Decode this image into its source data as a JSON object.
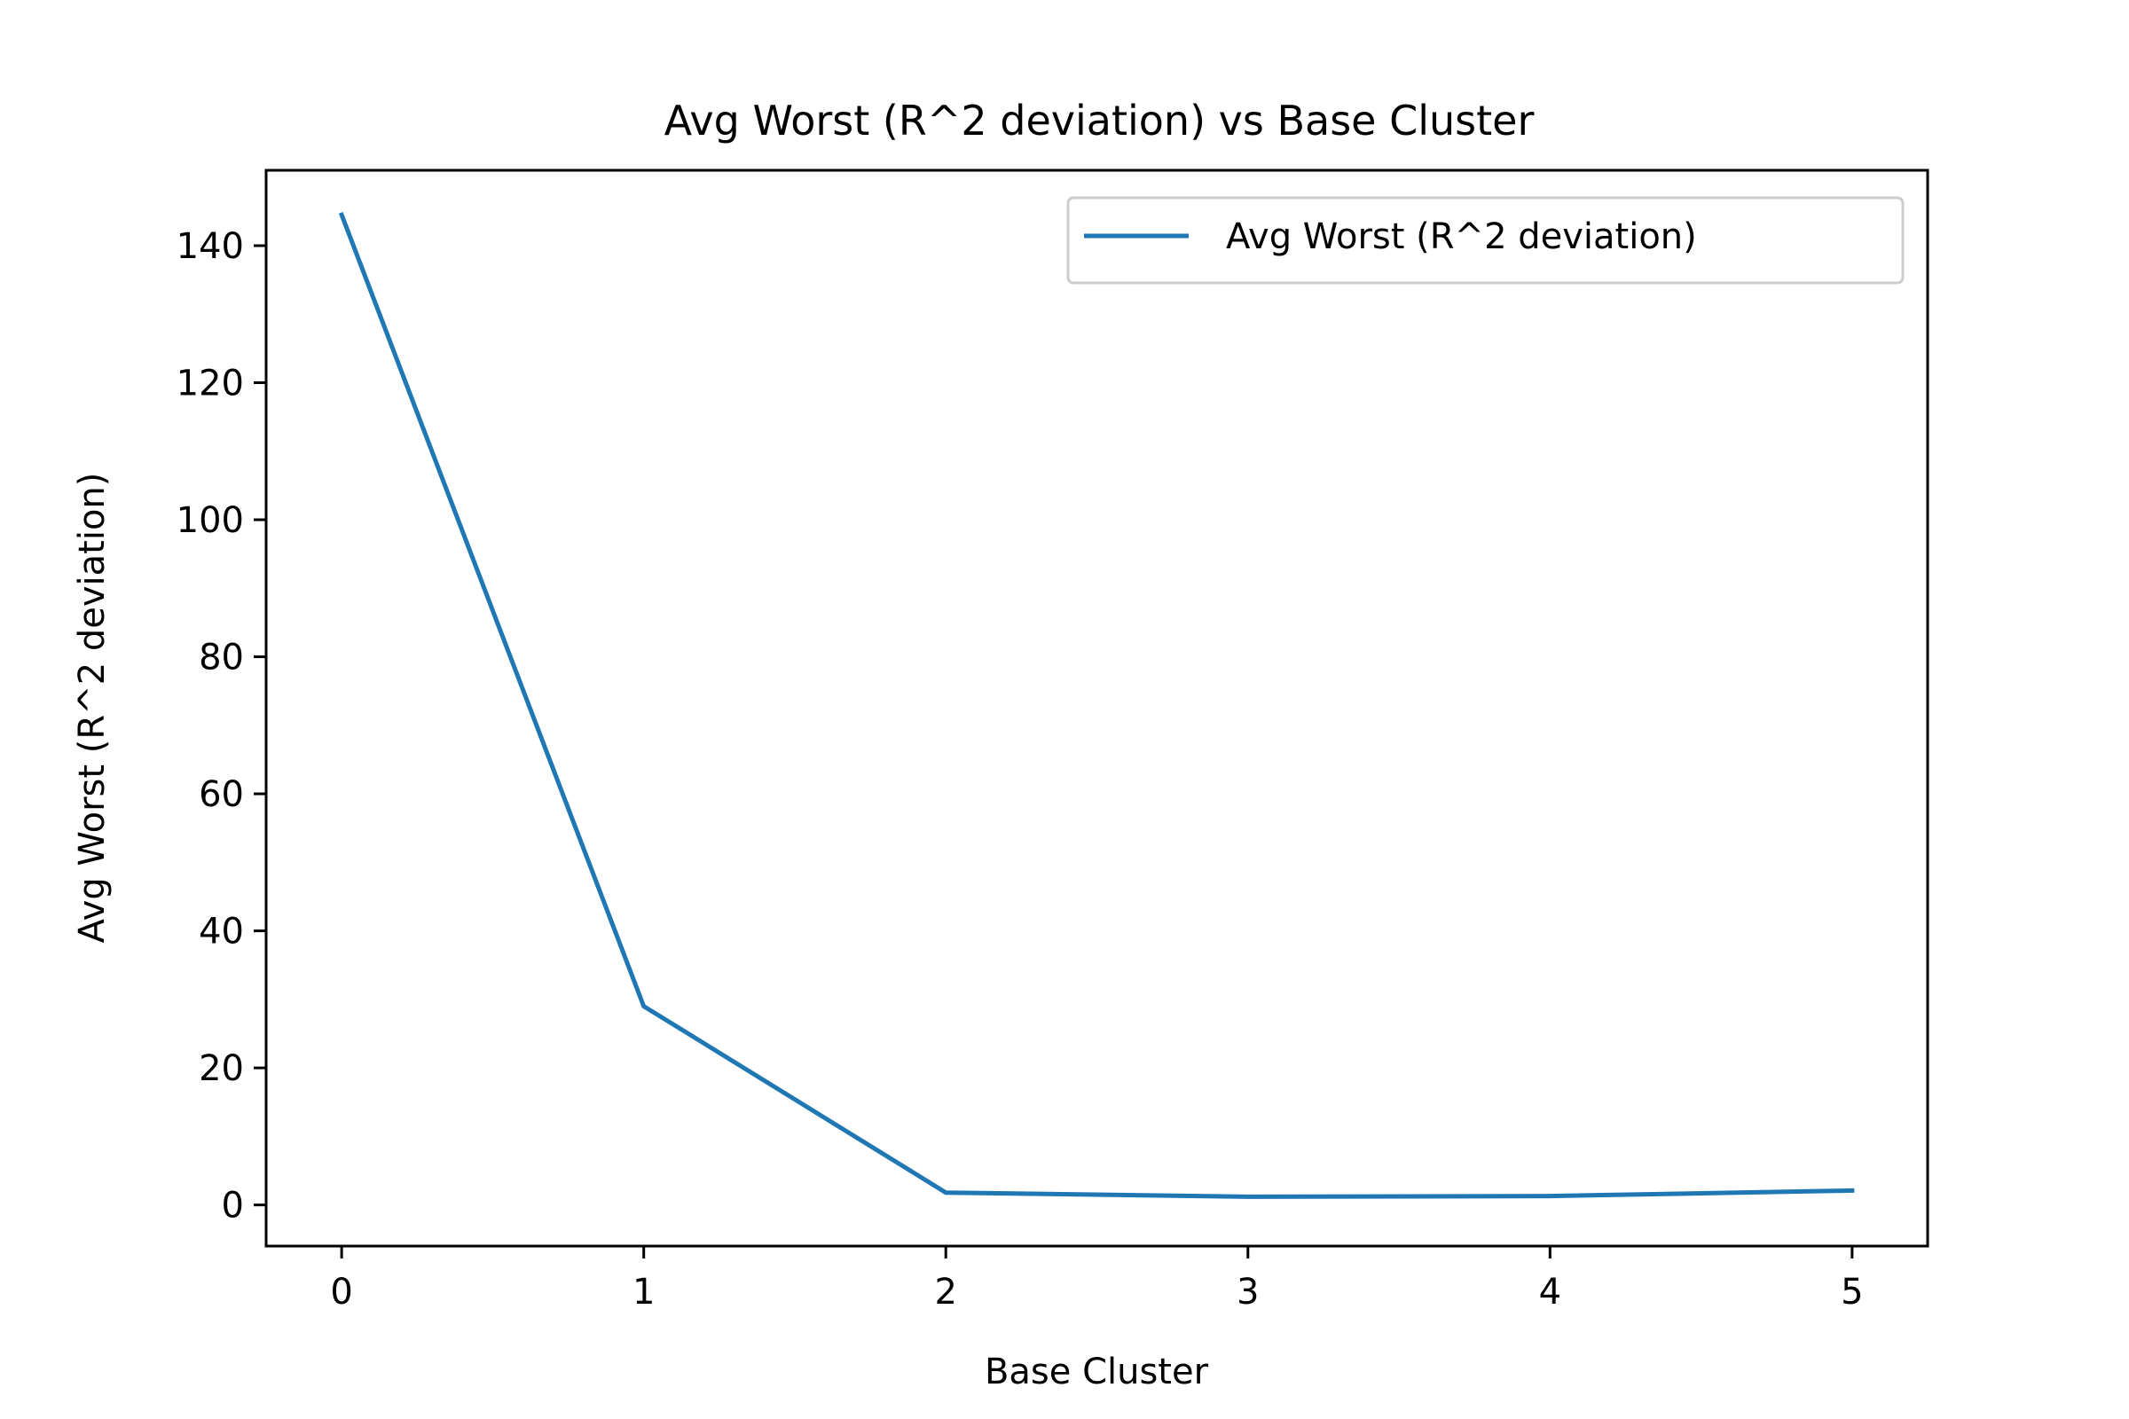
{
  "chart_data": {
    "type": "line",
    "title": "Avg Worst (R^2 deviation) vs Base Cluster",
    "xlabel": "Base Cluster",
    "ylabel": "Avg Worst (R^2 deviation)",
    "x": [
      0,
      1,
      2,
      3,
      4,
      5
    ],
    "xticks": [
      "0",
      "1",
      "2",
      "3",
      "4",
      "5"
    ],
    "yticks": [
      "0",
      "20",
      "40",
      "60",
      "80",
      "100",
      "120",
      "140"
    ],
    "xlim": [
      -0.25,
      5.25
    ],
    "ylim": [
      -6,
      151
    ],
    "grid": false,
    "legend_position": "top-right",
    "series": [
      {
        "name": "Avg Worst (R^2 deviation)",
        "color": "#1f77b4",
        "values": [
          144.5,
          29.0,
          1.8,
          1.2,
          1.3,
          2.1
        ]
      }
    ]
  }
}
